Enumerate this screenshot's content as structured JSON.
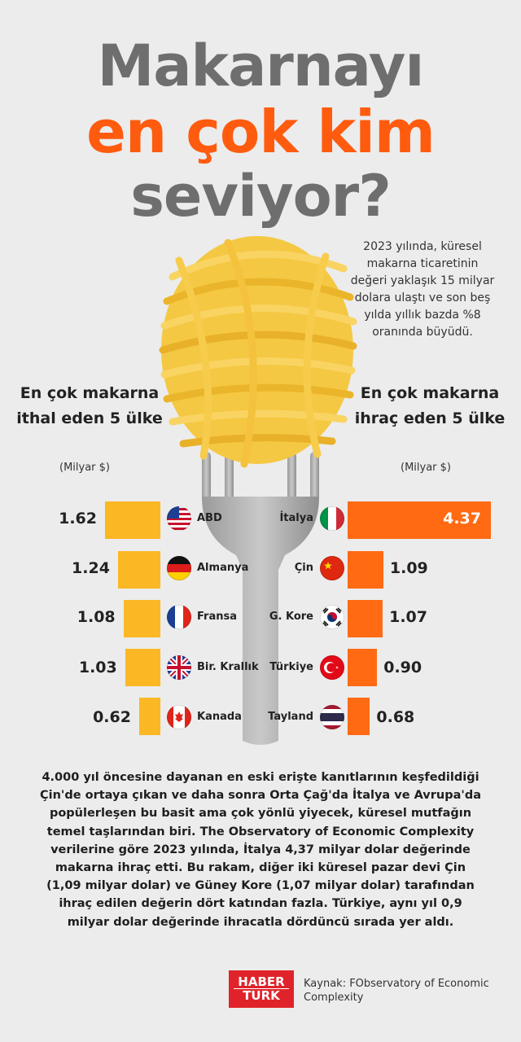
{
  "title": {
    "line1": "Makarnayı",
    "line2": "en çok kim",
    "line3": "seviyor?"
  },
  "intro_text": "2023 yılında, küresel makarna ticaretinin değeri yaklaşık 15 milyar dolara ulaştı ve son beş yılda yıllık bazda %8 oranında büyüdü.",
  "import_panel": {
    "heading": "En çok makarna ithal eden 5 ülke",
    "unit": "(Milyar $)"
  },
  "export_panel": {
    "heading": "En çok makarna ihraç eden 5 ülke",
    "unit": "(Milyar $)"
  },
  "chart_data": [
    {
      "type": "bar",
      "title": "En çok makarna ithal eden 5 ülke",
      "unit": "(Milyar $)",
      "categories": [
        "ABD",
        "Almanya",
        "Fransa",
        "Bir. Krallık",
        "Kanada"
      ],
      "values": [
        1.62,
        1.24,
        1.08,
        1.03,
        0.62
      ],
      "value_labels": [
        "1.62",
        "1.24",
        "1.08",
        "1.03",
        "0.62"
      ],
      "color": "#fbb724",
      "orientation": "horizontal, bars extend to the left"
    },
    {
      "type": "bar",
      "title": "En çok makarna ihraç eden 5 ülke",
      "unit": "(Milyar $)",
      "categories": [
        "İtalya",
        "Çin",
        "G. Kore",
        "Türkiye",
        "Tayland"
      ],
      "values": [
        4.37,
        1.09,
        1.07,
        0.9,
        0.68
      ],
      "value_labels": [
        "4.37",
        "1.09",
        "1.07",
        "0.90",
        "0.68"
      ],
      "color": "#ff6a13",
      "orientation": "horizontal, bars extend to the right"
    }
  ],
  "flags": {
    "import": [
      "us-flag-icon",
      "germany-flag-icon",
      "france-flag-icon",
      "uk-flag-icon",
      "canada-flag-icon"
    ],
    "export": [
      "italy-flag-icon",
      "china-flag-icon",
      "south-korea-flag-icon",
      "turkey-flag-icon",
      "thailand-flag-icon"
    ]
  },
  "body_text": "4.000 yıl öncesine dayanan en eski erişte kanıtlarının keşfedildiği Çin'de ortaya çıkan ve daha sonra Orta Çağ'da İtalya ve Avrupa'da popülerleşen bu basit ama çok yönlü yiyecek, küresel mutfağın temel taşlarından biri. The Observatory of Economic Complexity verilerine göre 2023 yılında, İtalya 4,37 milyar dolar değerinde makarna ihraç etti. Bu rakam, diğer iki küresel pazar devi Çin (1,09 milyar dolar) ve Güney Kore (1,07 milyar dolar) tarafından ihraç edilen değerin dört katından fazla. Türkiye, aynı yıl 0,9 milyar dolar değerinde ihracatla dördüncü sırada yer aldı.",
  "logo": {
    "line1": "HABER",
    "line2": "TURK"
  },
  "source": "Kaynak: FObservatory of Economic Complexity",
  "colors": {
    "title_gray": "#6e6e6e",
    "title_orange": "#ff5b0f",
    "import_bar": "#fbb724",
    "export_bar": "#ff6a13",
    "background": "#ececec"
  }
}
